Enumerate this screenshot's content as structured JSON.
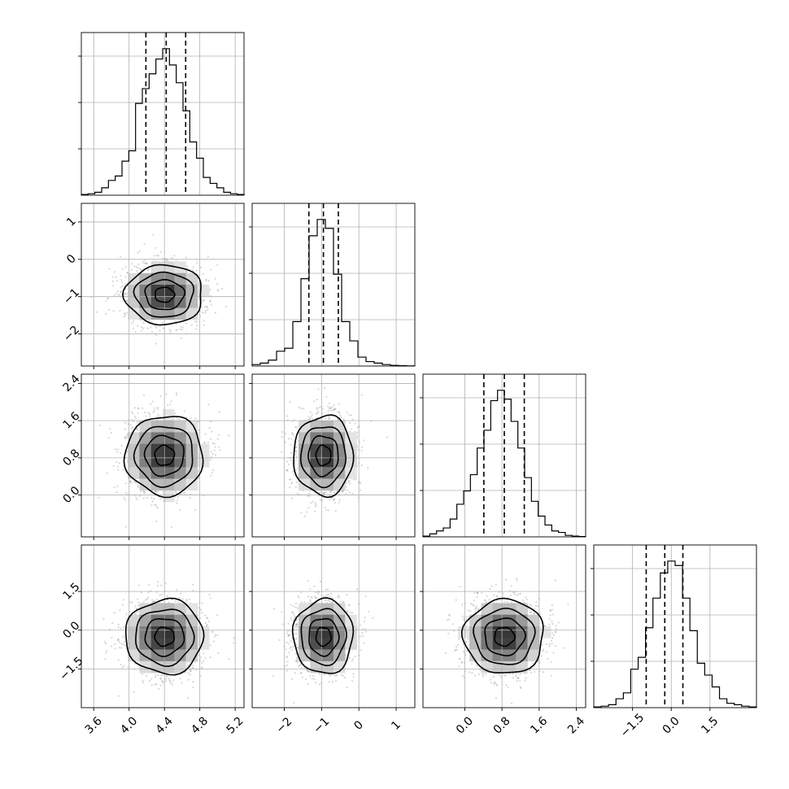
{
  "chart_data": {
    "type": "corner",
    "parameters": [
      {
        "center": 4.4,
        "sigma": 0.22,
        "range": [
          3.46,
          5.3
        ],
        "ticks": [
          3.6,
          4.0,
          4.4,
          4.8,
          5.2
        ],
        "tick_labels": [
          "3.6",
          "4.0",
          "4.4",
          "4.8",
          "5.2"
        ],
        "quantiles": [
          4.19,
          4.42,
          4.64
        ],
        "hist": [
          0.005,
          0.01,
          0.02,
          0.05,
          0.1,
          0.13,
          0.23,
          0.3,
          0.62,
          0.72,
          0.82,
          0.92,
          0.99,
          0.88,
          0.76,
          0.57,
          0.36,
          0.25,
          0.12,
          0.08,
          0.05,
          0.02,
          0.01,
          0.005
        ]
      },
      {
        "center": -0.95,
        "sigma": 0.4,
        "range": [
          -2.86,
          1.5
        ],
        "ticks": [
          -2,
          -1,
          0,
          1
        ],
        "tick_labels": [
          "−2",
          "−1",
          "0",
          "1"
        ],
        "quantiles": [
          -1.34,
          -0.95,
          -0.55
        ],
        "hist": [
          0.01,
          0.02,
          0.04,
          0.1,
          0.12,
          0.3,
          0.59,
          0.88,
          0.99,
          0.93,
          0.62,
          0.3,
          0.17,
          0.06,
          0.03,
          0.02,
          0.01,
          0.004,
          0.002,
          0.001
        ]
      },
      {
        "center": 0.85,
        "sigma": 0.43,
        "range": [
          -0.9,
          2.6
        ],
        "ticks": [
          0.0,
          0.8,
          1.6,
          2.4
        ],
        "tick_labels": [
          "0.0",
          "0.8",
          "1.6",
          "2.4"
        ],
        "quantiles": [
          0.41,
          0.85,
          1.28
        ],
        "hist": [
          0.005,
          0.02,
          0.04,
          0.06,
          0.12,
          0.22,
          0.31,
          0.42,
          0.6,
          0.72,
          0.92,
          0.99,
          0.93,
          0.78,
          0.6,
          0.4,
          0.24,
          0.14,
          0.08,
          0.04,
          0.03,
          0.01,
          0.005,
          0.002
        ]
      },
      {
        "center": -0.25,
        "sigma": 0.72,
        "range": [
          -3.0,
          3.3
        ],
        "ticks": [
          -1.5,
          0.0,
          1.5
        ],
        "tick_labels": [
          "−1.5",
          "0.0",
          "1.5"
        ],
        "quantiles": [
          -0.97,
          -0.25,
          0.45
        ],
        "hist": [
          0.005,
          0.01,
          0.02,
          0.06,
          0.1,
          0.26,
          0.34,
          0.54,
          0.74,
          0.91,
          0.99,
          0.96,
          0.74,
          0.52,
          0.3,
          0.22,
          0.14,
          0.06,
          0.03,
          0.02,
          0.01,
          0.005
        ]
      }
    ],
    "grid": true,
    "contour_levels_sigma": [
      0.5,
      1.0,
      1.5,
      2.0
    ],
    "scatter_points_per_panel": 1500
  }
}
